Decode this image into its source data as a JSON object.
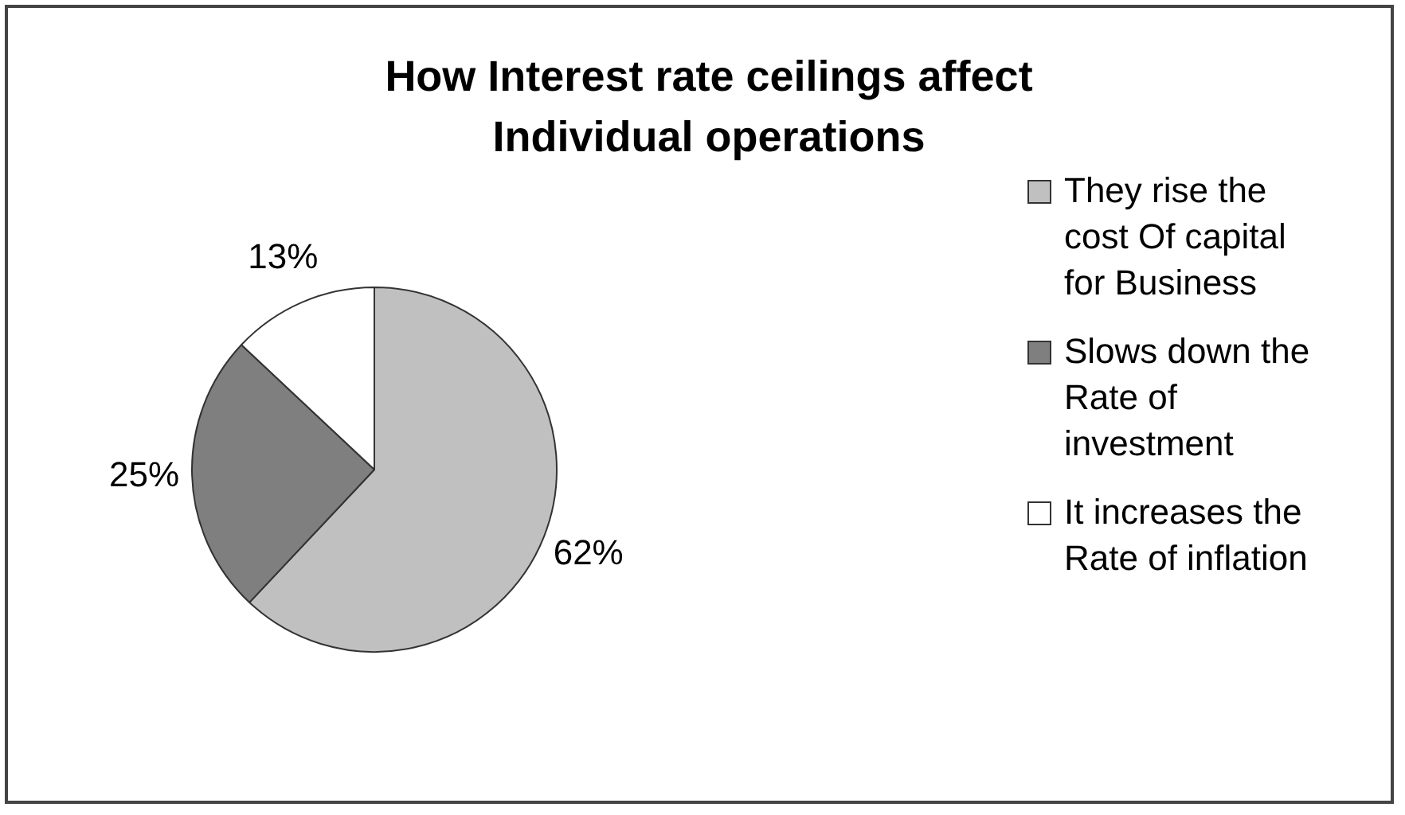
{
  "chart_data": {
    "type": "pie",
    "title": "How Interest rate ceilings affect Individual operations",
    "categories": [
      "They rise the cost Of capital for Business",
      "Slows down the Rate of investment",
      "It increases the Rate of inflation"
    ],
    "values": [
      62,
      25,
      13
    ],
    "colors": [
      "#c0c0c0",
      "#7f7f7f",
      "#ffffff"
    ],
    "value_labels": [
      "62%",
      "25%",
      "13%"
    ],
    "legend": "right"
  }
}
